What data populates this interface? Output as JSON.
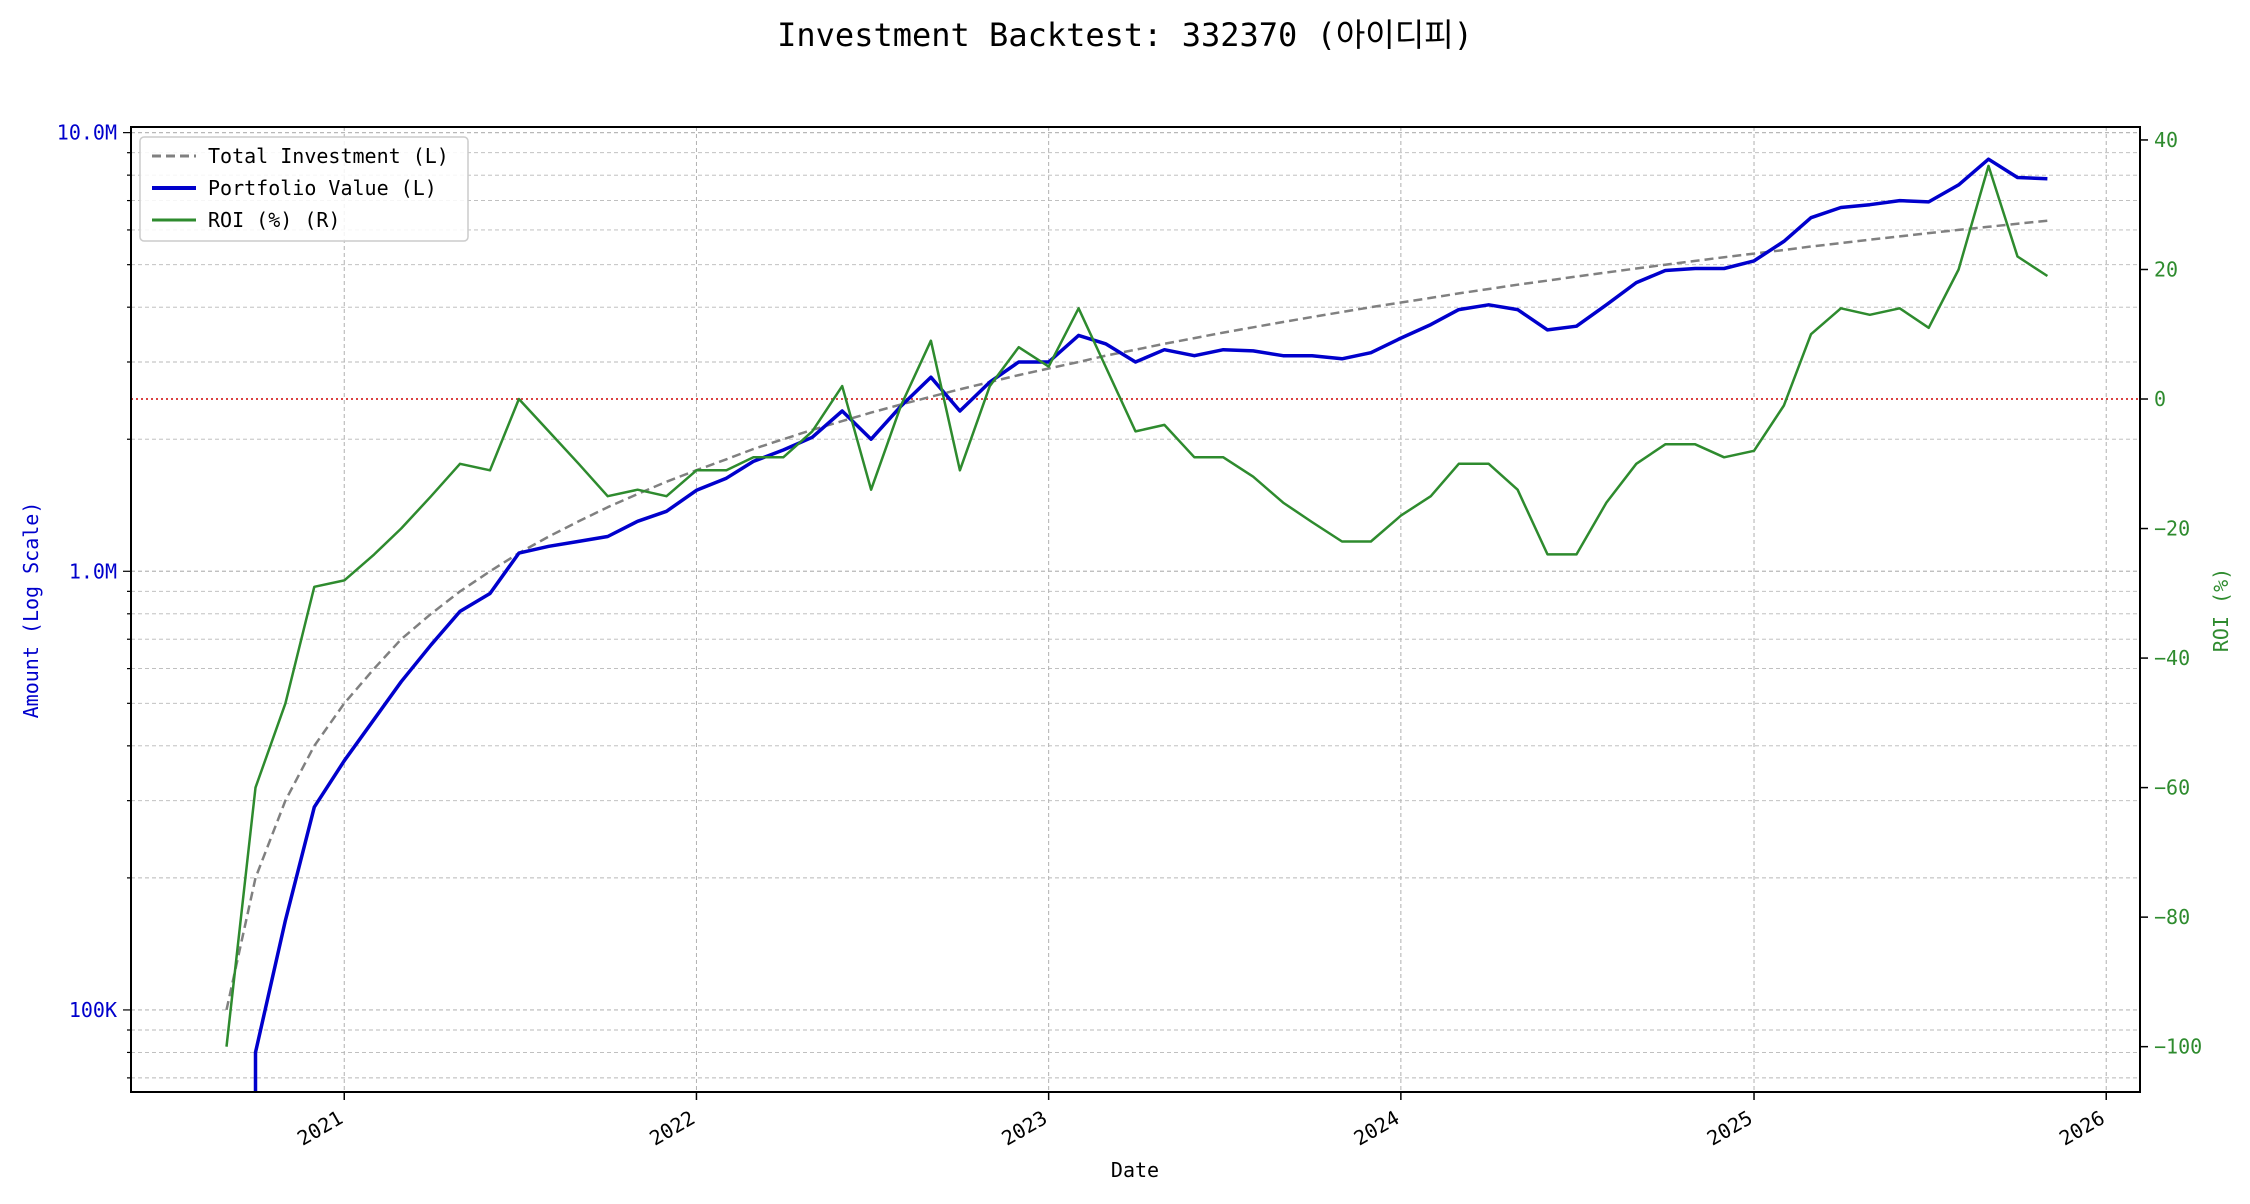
{
  "chart_data": {
    "type": "line",
    "title": "Investment Backtest: 332370 (아이디피)",
    "xlabel": "Date",
    "ylabel_left": "Amount (Log Scale)",
    "ylabel_right": "ROI (%)",
    "x_ticks": [
      "2021",
      "2022",
      "2023",
      "2024",
      "2025",
      "2026"
    ],
    "y_left_ticks": [
      {
        "value": 100000,
        "label": "100K"
      },
      {
        "value": 1000000,
        "label": "1.0M"
      },
      {
        "value": 10000000,
        "label": "10.0M"
      }
    ],
    "y_right_ticks": [
      -100,
      -80,
      -60,
      -40,
      -20,
      0,
      20,
      40
    ],
    "y_left_scale": "log",
    "y_left_range": [
      65000,
      10300000
    ],
    "y_right_range": [
      -107,
      42
    ],
    "x_range": [
      "2020-05-25",
      "2026-02-05"
    ],
    "grid": true,
    "legend_position": "upper-left",
    "zero_line": {
      "axis": "right",
      "value": 0,
      "color": "#d62728",
      "style": "dotted"
    },
    "colors": {
      "total_investment": "#808080",
      "portfolio_value": "#0000cc",
      "roi": "#2e8b2e",
      "left_axis": "#0000cc",
      "right_axis": "#2e8b2e"
    },
    "dates": [
      "2020-09-01",
      "2020-10-01",
      "2020-11-01",
      "2020-12-01",
      "2021-01-01",
      "2021-02-01",
      "2021-03-01",
      "2021-04-01",
      "2021-05-01",
      "2021-06-01",
      "2021-07-01",
      "2021-08-01",
      "2021-09-01",
      "2021-10-01",
      "2021-11-01",
      "2021-12-01",
      "2022-01-01",
      "2022-02-01",
      "2022-03-01",
      "2022-04-01",
      "2022-05-01",
      "2022-06-01",
      "2022-07-01",
      "2022-08-01",
      "2022-09-01",
      "2022-10-01",
      "2022-11-01",
      "2022-12-01",
      "2023-01-01",
      "2023-02-01",
      "2023-03-01",
      "2023-04-01",
      "2023-05-01",
      "2023-06-01",
      "2023-07-01",
      "2023-08-01",
      "2023-09-01",
      "2023-10-01",
      "2023-11-01",
      "2023-12-01",
      "2024-01-01",
      "2024-02-01",
      "2024-03-01",
      "2024-04-01",
      "2024-05-01",
      "2024-06-01",
      "2024-07-01",
      "2024-08-01",
      "2024-09-01",
      "2024-10-01",
      "2024-11-01",
      "2024-12-01",
      "2025-01-01",
      "2025-02-01",
      "2025-03-01",
      "2025-04-01",
      "2025-05-01",
      "2025-06-01",
      "2025-07-01",
      "2025-08-01",
      "2025-09-01",
      "2025-10-01",
      "2025-11-01"
    ],
    "series": [
      {
        "name": "Total Investment (L)",
        "axis": "left",
        "style": "dashed",
        "values": [
          100000,
          200000,
          300000,
          400000,
          500000,
          600000,
          700000,
          800000,
          900000,
          1000000,
          1100000,
          1200000,
          1300000,
          1400000,
          1500000,
          1600000,
          1700000,
          1800000,
          1900000,
          2000000,
          2100000,
          2200000,
          2300000,
          2400000,
          2500000,
          2600000,
          2700000,
          2800000,
          2900000,
          3000000,
          3100000,
          3200000,
          3300000,
          3400000,
          3500000,
          3600000,
          3700000,
          3800000,
          3900000,
          4000000,
          4100000,
          4200000,
          4300000,
          4400000,
          4500000,
          4600000,
          4700000,
          4800000,
          4900000,
          5000000,
          5100000,
          5200000,
          5300000,
          5400000,
          5500000,
          5600000,
          5700000,
          5800000,
          5900000,
          6000000,
          6100000,
          6200000,
          6300000
        ]
      },
      {
        "name": "Portfolio Value (L)",
        "axis": "left",
        "style": "solid",
        "values": [
          null,
          80000,
          160000,
          290000,
          370000,
          460000,
          560000,
          680000,
          810000,
          890000,
          1100000,
          1140000,
          1170000,
          1200000,
          1300000,
          1370000,
          1530000,
          1630000,
          1780000,
          1890000,
          2020000,
          2320000,
          2000000,
          2380000,
          2770000,
          2320000,
          2700000,
          3000000,
          3000000,
          3450000,
          3300000,
          3000000,
          3200000,
          3100000,
          3200000,
          3180000,
          3100000,
          3100000,
          3050000,
          3150000,
          3400000,
          3650000,
          3950000,
          4050000,
          3950000,
          3550000,
          3620000,
          4050000,
          4550000,
          4850000,
          4900000,
          4900000,
          5100000,
          5650000,
          6400000,
          6750000,
          6850000,
          7000000,
          6950000,
          7600000,
          8700000,
          7900000,
          7850000
        ]
      },
      {
        "name": "ROI (%) (R)",
        "axis": "right",
        "style": "solid",
        "values": [
          -100,
          -60,
          -47,
          -29,
          -28,
          -24,
          -20,
          -15,
          -10,
          -11,
          0,
          -5,
          -10,
          -15,
          -14,
          -15,
          -11,
          -11,
          -9,
          -9,
          -5,
          2,
          -14,
          -1,
          9,
          -11,
          2,
          8,
          5,
          14,
          5,
          -5,
          -4,
          -9,
          -9,
          -12,
          -16,
          -19,
          -22,
          -22,
          -18,
          -15,
          -10,
          -10,
          -14,
          -24,
          -24,
          -16,
          -10,
          -7,
          -7,
          -9,
          -8,
          -1,
          10,
          14,
          13,
          14,
          11,
          20,
          36,
          22,
          19
        ]
      }
    ]
  }
}
